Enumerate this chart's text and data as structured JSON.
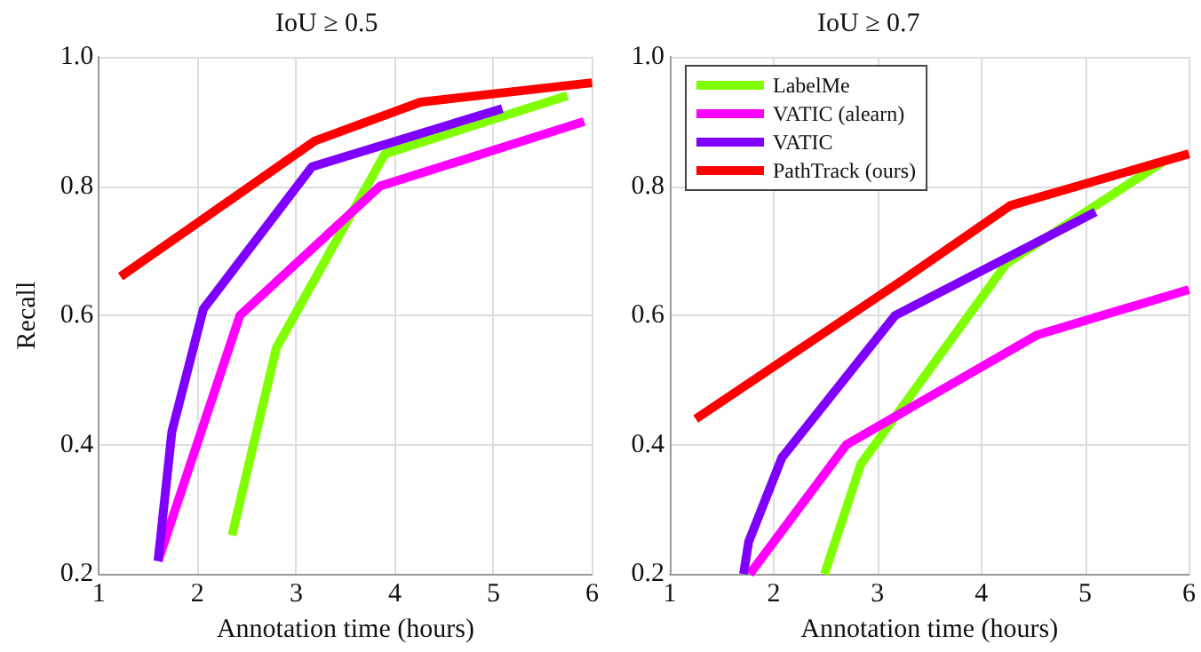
{
  "chart_data": [
    {
      "type": "line",
      "title": "IoU ≥ 0.5",
      "xlabel": "Annotation time (hours)",
      "ylabel": "Recall",
      "xlim": [
        1,
        6
      ],
      "xticks": [
        1,
        2,
        3,
        4,
        5,
        6
      ],
      "ylim": [
        0.2,
        1.0
      ],
      "yticks": [
        {
          "value": 0.2,
          "label": "0.2"
        },
        {
          "value": 0.4,
          "label": "0.4"
        },
        {
          "value": 0.6,
          "label": "0.6"
        },
        {
          "value": 0.8,
          "label": "0.8"
        },
        {
          "value": 1.0,
          "label": "1.0"
        }
      ],
      "grid": true,
      "legend": false,
      "marker": "none",
      "line_style": "solid",
      "series": [
        {
          "color": "#7fff00",
          "x": [
            2.35,
            2.8,
            3.9,
            5.75
          ],
          "values": [
            0.26,
            0.55,
            0.85,
            0.94
          ]
        },
        {
          "color": "#ff00ff",
          "x": [
            1.6,
            2.43,
            3.85,
            5.92
          ],
          "values": [
            0.22,
            0.6,
            0.8,
            0.9
          ]
        },
        {
          "color": "#7f00ff",
          "x": [
            1.6,
            1.74,
            2.06,
            3.16,
            5.09
          ],
          "values": [
            0.22,
            0.42,
            0.61,
            0.83,
            0.92
          ]
        },
        {
          "color": "#ff0000",
          "x": [
            1.22,
            3.19,
            4.26,
            6.0
          ],
          "values": [
            0.66,
            0.87,
            0.93,
            0.96
          ]
        }
      ]
    },
    {
      "type": "line",
      "title": "IoU ≥ 0.7",
      "xlabel": "Annotation time (hours)",
      "xlim": [
        1,
        6
      ],
      "xticks": [
        1,
        2,
        3,
        4,
        5,
        6
      ],
      "ylim": [
        0.2,
        1.0
      ],
      "yticks": [
        {
          "value": 0.2,
          "label": "0.2"
        },
        {
          "value": 0.4,
          "label": "0.4"
        },
        {
          "value": 0.6,
          "label": "0.6"
        },
        {
          "value": 0.8,
          "label": "0.8"
        },
        {
          "value": 1.0,
          "label": "1.0"
        }
      ],
      "grid": true,
      "legend": "top left",
      "marker": "none",
      "line_style": "solid",
      "series": [
        {
          "name": "LabelMe",
          "color": "#7fff00",
          "x": [
            2.49,
            2.84,
            4.24,
            5.77
          ],
          "values": [
            0.2,
            0.37,
            0.68,
            0.84
          ]
        },
        {
          "name": "VATIC (alearn)",
          "color": "#ff00ff",
          "x": [
            1.77,
            2.7,
            4.54,
            6.0
          ],
          "values": [
            0.2,
            0.4,
            0.57,
            0.64
          ]
        },
        {
          "name": "VATIC",
          "color": "#7f00ff",
          "x": [
            1.71,
            1.76,
            2.08,
            3.17,
            5.1
          ],
          "values": [
            0.2,
            0.25,
            0.38,
            0.6,
            0.76
          ]
        },
        {
          "name": "PathTrack (ours)",
          "color": "#ff0000",
          "x": [
            1.25,
            3.2,
            4.28,
            6.0
          ],
          "values": [
            0.44,
            0.65,
            0.77,
            0.85
          ]
        }
      ]
    }
  ]
}
